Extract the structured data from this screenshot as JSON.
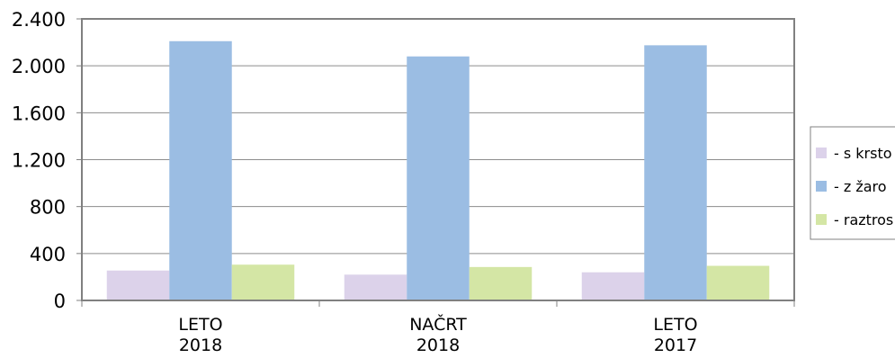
{
  "chart_data": {
    "type": "bar",
    "categories": [
      [
        "LETO",
        "2018"
      ],
      [
        "NAČRT",
        "2018"
      ],
      [
        "LETO",
        "2017"
      ]
    ],
    "series": [
      {
        "name": "- s krsto",
        "values": [
          255,
          220,
          240
        ],
        "color": "#dcd2ea"
      },
      {
        "name": "- z žaro",
        "values": [
          2210,
          2080,
          2175
        ],
        "color": "#9bbde3"
      },
      {
        "name": "- raztros",
        "values": [
          305,
          285,
          295
        ],
        "color": "#d4e6a5"
      }
    ],
    "ylim": [
      0,
      2400
    ],
    "yticks": [
      0,
      400,
      800,
      1200,
      1600,
      2000,
      2400
    ],
    "ytick_labels": [
      "0",
      "400",
      "800",
      "1.200",
      "1.600",
      "2.000",
      "2.400"
    ],
    "grid": true,
    "legend_position": "right"
  }
}
